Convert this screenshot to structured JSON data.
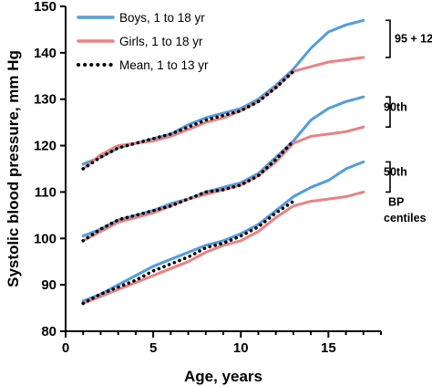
{
  "chart_data": {
    "type": "line",
    "xlabel": "Age, years",
    "ylabel": "Systolic blood pressure, mm Hg",
    "xlim": [
      0,
      18
    ],
    "ylim": [
      80,
      150
    ],
    "xticks": [
      0,
      5,
      10,
      15
    ],
    "yticks": [
      80,
      90,
      100,
      110,
      120,
      130,
      140,
      150
    ],
    "legend_position": "top-left",
    "series": [
      {
        "name": "Boys, 1 to 18 yr",
        "color": "#4f9de3",
        "style": "solid",
        "groups": [
          {
            "x": [
              1,
              2,
              3,
              4,
              5,
              6,
              7,
              8,
              9,
              10,
              11,
              12,
              13,
              14,
              15,
              16,
              17
            ],
            "y": [
              86.5,
              88.0,
              90.0,
              92.0,
              94.0,
              95.5,
              97.0,
              98.5,
              99.5,
              101.0,
              103.0,
              106.0,
              109.0,
              111.0,
              112.5,
              115.0,
              116.5
            ]
          },
          {
            "x": [
              1,
              2,
              3,
              4,
              5,
              6,
              7,
              8,
              9,
              10,
              11,
              12,
              13,
              14,
              15,
              16,
              17
            ],
            "y": [
              100.5,
              102.0,
              104.0,
              105.0,
              106.0,
              107.5,
              108.5,
              110.0,
              111.0,
              112.0,
              114.0,
              117.5,
              121.0,
              125.5,
              128.0,
              129.5,
              130.5
            ]
          },
          {
            "x": [
              1,
              2,
              3,
              4,
              5,
              6,
              7,
              8,
              9,
              10,
              11,
              12,
              13,
              14,
              15,
              16,
              17
            ],
            "y": [
              116.0,
              117.5,
              119.5,
              120.5,
              121.5,
              122.5,
              124.5,
              126.0,
              127.0,
              128.0,
              130.0,
              133.0,
              136.5,
              141.0,
              144.5,
              146.0,
              147.0
            ]
          }
        ]
      },
      {
        "name": "Girls, 1 to 18 yr",
        "color": "#f08080",
        "style": "solid",
        "groups": [
          {
            "x": [
              1,
              2,
              3,
              4,
              5,
              6,
              7,
              8,
              9,
              10,
              11,
              12,
              13,
              14,
              15,
              16,
              17
            ],
            "y": [
              86.0,
              87.5,
              89.0,
              90.5,
              92.0,
              93.5,
              95.0,
              97.0,
              98.5,
              99.5,
              101.5,
              104.5,
              107.0,
              108.0,
              108.5,
              109.0,
              110.0
            ]
          },
          {
            "x": [
              1,
              2,
              3,
              4,
              5,
              6,
              7,
              8,
              9,
              10,
              11,
              12,
              13,
              14,
              15,
              16,
              17
            ],
            "y": [
              99.5,
              101.5,
              103.5,
              104.5,
              105.5,
              107.0,
              108.5,
              109.5,
              110.5,
              111.5,
              113.5,
              116.5,
              120.5,
              122.0,
              122.5,
              123.0,
              124.0
            ]
          },
          {
            "x": [
              1,
              2,
              3,
              4,
              5,
              6,
              7,
              8,
              9,
              10,
              11,
              12,
              13,
              14,
              15,
              16,
              17
            ],
            "y": [
              115.0,
              118.0,
              120.0,
              120.5,
              121.0,
              122.0,
              123.5,
              125.0,
              126.0,
              127.5,
              129.5,
              132.5,
              136.0,
              137.0,
              138.0,
              138.5,
              139.0
            ]
          }
        ]
      },
      {
        "name": "Mean, 1 to 13 yr",
        "color": "#000000",
        "style": "dotted",
        "groups": [
          {
            "x": [
              1,
              2,
              3,
              4,
              5,
              6,
              7,
              8,
              9,
              10,
              11,
              12,
              13
            ],
            "y": [
              86.0,
              88.0,
              89.5,
              91.0,
              93.0,
              94.5,
              96.0,
              98.0,
              99.0,
              100.5,
              102.5,
              105.5,
              108.0
            ]
          },
          {
            "x": [
              1,
              2,
              3,
              4,
              5,
              6,
              7,
              8,
              9,
              10,
              11,
              12,
              13
            ],
            "y": [
              99.5,
              102.0,
              104.0,
              105.0,
              106.0,
              107.0,
              108.5,
              110.0,
              110.5,
              111.5,
              113.5,
              117.0,
              121.0
            ]
          },
          {
            "x": [
              1,
              2,
              3,
              4,
              5,
              6,
              7,
              8,
              9,
              10,
              11,
              12,
              13
            ],
            "y": [
              115.0,
              117.5,
              119.5,
              120.5,
              121.5,
              122.5,
              124.0,
              125.5,
              126.5,
              127.5,
              129.5,
              132.5,
              136.0
            ]
          }
        ]
      }
    ],
    "annotations": [
      {
        "text": "95 + 12",
        "bracket_y": [
          139,
          147
        ]
      },
      {
        "text": "90th",
        "bracket_y": [
          124,
          130.5
        ]
      },
      {
        "text": "50th",
        "bracket_y": [
          110,
          116.5
        ]
      },
      {
        "text": "BP",
        "bracket_y": null
      },
      {
        "text": "centiles",
        "bracket_y": null
      }
    ]
  }
}
